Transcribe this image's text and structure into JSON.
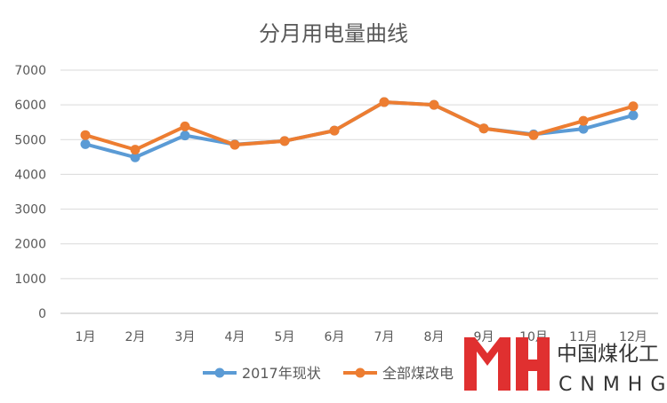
{
  "chart_data": {
    "type": "line",
    "title": "分月用电量曲线",
    "categories": [
      "1月",
      "2月",
      "3月",
      "4月",
      "5月",
      "6月",
      "7月",
      "8月",
      "9月",
      "10月",
      "11月",
      "12月"
    ],
    "series": [
      {
        "name": "2017年现状",
        "color": "#5B9BD5",
        "values": [
          4870,
          4490,
          5120,
          4860,
          4960,
          5260,
          6080,
          6000,
          5320,
          5150,
          5310,
          5700
        ]
      },
      {
        "name": "全部煤改电",
        "color": "#ED7D31",
        "values": [
          5130,
          4710,
          5380,
          4850,
          4960,
          5260,
          6080,
          6000,
          5320,
          5130,
          5540,
          5960
        ]
      }
    ],
    "yticks": [
      "0",
      "1000",
      "2000",
      "3000",
      "4000",
      "5000",
      "6000",
      "7000"
    ],
    "ylim": [
      0,
      7000
    ],
    "grid": true,
    "legend_position": "bottom"
  },
  "watermark": {
    "brand_cn": "中国煤化工",
    "brand_en": "CNMHG",
    "color": "#e03030"
  }
}
